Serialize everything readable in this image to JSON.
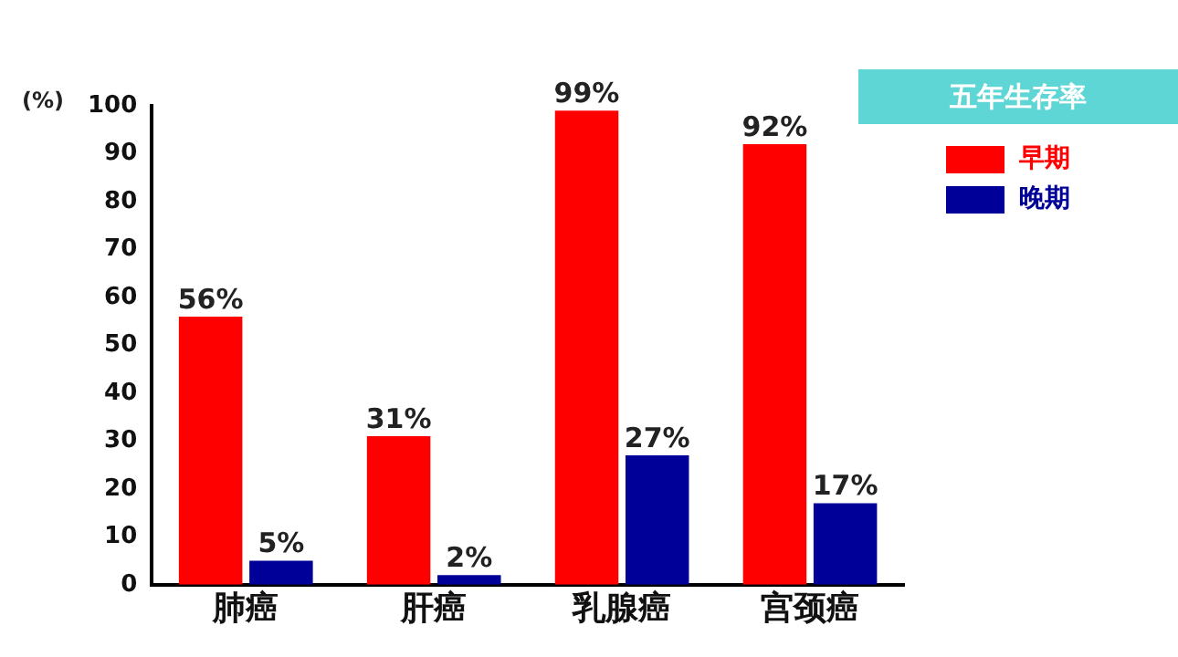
{
  "chart_data": {
    "type": "bar",
    "title": "五年生存率",
    "ylabel": "(%)",
    "categories": [
      "肺癌",
      "肝癌",
      "乳腺癌",
      "宫颈癌"
    ],
    "series": [
      {
        "name": "早期",
        "color": "#ff0000",
        "values": [
          56,
          31,
          99,
          92
        ],
        "value_labels": [
          "56%",
          "31%",
          "99%",
          "92%"
        ]
      },
      {
        "name": "晚期",
        "color": "#000099",
        "values": [
          5,
          2,
          27,
          17
        ],
        "value_labels": [
          "5%",
          "2%",
          "27%",
          "17%"
        ]
      }
    ],
    "ylim": [
      0,
      100
    ],
    "yticks": [
      0,
      10,
      20,
      30,
      40,
      50,
      60,
      70,
      80,
      90,
      100
    ],
    "grid": false,
    "legend": "top right"
  }
}
